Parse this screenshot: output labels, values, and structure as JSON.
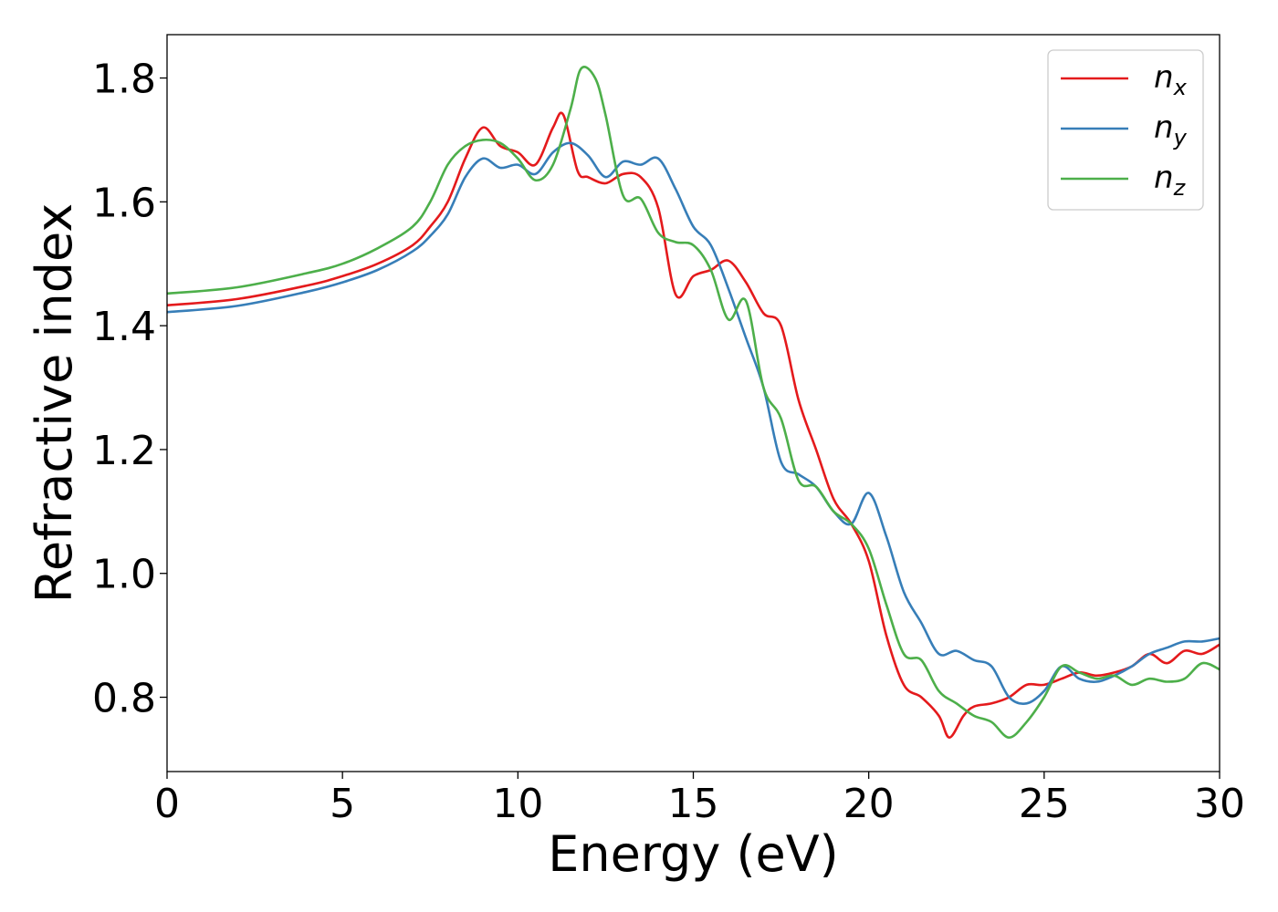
{
  "chart_data": {
    "type": "line",
    "xlabel": "Energy (eV)",
    "ylabel": "Refractive index",
    "xlim": [
      0,
      30
    ],
    "ylim": [
      0.68,
      1.87
    ],
    "x_ticks": [
      0,
      5,
      10,
      15,
      20,
      25,
      30
    ],
    "y_ticks": [
      0.8,
      1.0,
      1.2,
      1.4,
      1.6,
      1.8
    ],
    "x_tick_labels": [
      "0",
      "5",
      "10",
      "15",
      "20",
      "25",
      "30"
    ],
    "y_tick_labels": [
      "0.8",
      "1.0",
      "1.2",
      "1.4",
      "1.6",
      "1.8"
    ],
    "grid": false,
    "legend_position": "top-right",
    "series": [
      {
        "name": "n_x",
        "label_base": "n",
        "label_sub": "x",
        "color": "#e41a1c",
        "x": [
          0,
          2,
          4,
          5,
          6,
          7,
          7.5,
          8,
          8.5,
          9,
          9.5,
          10,
          10.5,
          11,
          11.3,
          11.7,
          12,
          12.5,
          13,
          13.5,
          14,
          14.5,
          15,
          15.5,
          16,
          16.5,
          17,
          17.5,
          18,
          18.5,
          19,
          19.5,
          20,
          20.5,
          21,
          21.5,
          22,
          22.3,
          22.7,
          23,
          23.5,
          24,
          24.5,
          25,
          25.5,
          26,
          26.5,
          27,
          27.5,
          28,
          28.5,
          29,
          29.5,
          30
        ],
        "y": [
          1.433,
          1.443,
          1.465,
          1.48,
          1.5,
          1.53,
          1.56,
          1.6,
          1.67,
          1.72,
          1.69,
          1.68,
          1.66,
          1.72,
          1.74,
          1.65,
          1.64,
          1.63,
          1.645,
          1.64,
          1.59,
          1.45,
          1.48,
          1.49,
          1.505,
          1.47,
          1.42,
          1.4,
          1.28,
          1.2,
          1.12,
          1.08,
          1.02,
          0.9,
          0.82,
          0.8,
          0.77,
          0.735,
          0.77,
          0.785,
          0.79,
          0.8,
          0.82,
          0.82,
          0.83,
          0.84,
          0.835,
          0.84,
          0.85,
          0.87,
          0.855,
          0.875,
          0.87,
          0.885
        ]
      },
      {
        "name": "n_y",
        "label_base": "n",
        "label_sub": "y",
        "color": "#377eb8",
        "x": [
          0,
          2,
          4,
          5,
          6,
          7,
          7.5,
          8,
          8.5,
          9,
          9.5,
          10,
          10.5,
          11,
          11.5,
          12,
          12.5,
          13,
          13.5,
          14,
          14.5,
          15,
          15.5,
          16,
          16.5,
          17,
          17.5,
          18,
          18.5,
          19,
          19.5,
          20,
          20.5,
          21,
          21.5,
          22,
          22.5,
          23,
          23.5,
          24,
          24.5,
          25,
          25.5,
          26,
          26.5,
          27,
          27.5,
          28,
          28.5,
          29,
          29.5,
          30
        ],
        "y": [
          1.422,
          1.432,
          1.455,
          1.47,
          1.49,
          1.52,
          1.545,
          1.58,
          1.64,
          1.67,
          1.655,
          1.66,
          1.645,
          1.68,
          1.695,
          1.675,
          1.64,
          1.665,
          1.66,
          1.67,
          1.62,
          1.56,
          1.53,
          1.46,
          1.38,
          1.3,
          1.18,
          1.16,
          1.14,
          1.1,
          1.08,
          1.13,
          1.06,
          0.97,
          0.92,
          0.87,
          0.875,
          0.86,
          0.85,
          0.8,
          0.79,
          0.81,
          0.85,
          0.83,
          0.825,
          0.835,
          0.85,
          0.87,
          0.88,
          0.89,
          0.89,
          0.895
        ]
      },
      {
        "name": "n_z",
        "label_base": "n",
        "label_sub": "z",
        "color": "#4daf4a",
        "x": [
          0,
          2,
          4,
          5,
          6,
          7,
          7.5,
          8,
          8.5,
          9,
          9.5,
          10,
          10.5,
          11,
          11.5,
          11.8,
          12.2,
          12.5,
          13,
          13.5,
          14,
          14.5,
          15,
          15.5,
          16,
          16.5,
          17,
          17.5,
          18,
          18.5,
          19,
          19.5,
          20,
          20.5,
          21,
          21.5,
          22,
          22.5,
          23,
          23.5,
          24,
          24.5,
          25,
          25.5,
          26,
          26.5,
          27,
          27.5,
          28,
          28.5,
          29,
          29.5,
          30
        ],
        "y": [
          1.452,
          1.462,
          1.485,
          1.5,
          1.525,
          1.56,
          1.6,
          1.66,
          1.69,
          1.7,
          1.695,
          1.67,
          1.635,
          1.66,
          1.75,
          1.815,
          1.8,
          1.74,
          1.61,
          1.605,
          1.55,
          1.535,
          1.53,
          1.49,
          1.41,
          1.44,
          1.3,
          1.25,
          1.15,
          1.14,
          1.1,
          1.08,
          1.04,
          0.95,
          0.87,
          0.86,
          0.81,
          0.79,
          0.77,
          0.76,
          0.735,
          0.76,
          0.8,
          0.85,
          0.84,
          0.83,
          0.835,
          0.82,
          0.83,
          0.825,
          0.83,
          0.855,
          0.845
        ]
      }
    ]
  }
}
